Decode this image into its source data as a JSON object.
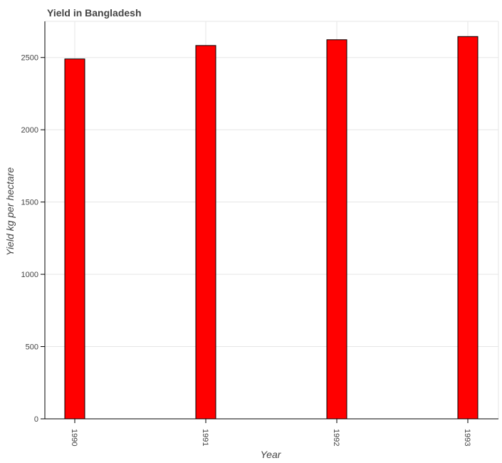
{
  "chart_data": {
    "type": "bar",
    "title": "Yield in Bangladesh",
    "xlabel": "Year",
    "ylabel": "Yield kg per hectare",
    "categories": [
      "1990",
      "1991",
      "1992",
      "1993"
    ],
    "values": [
      2490,
      2583,
      2623,
      2645
    ],
    "ylim": [
      0,
      2750
    ],
    "yticks": [
      0,
      500,
      1000,
      1500,
      2000,
      2500
    ],
    "grid": true,
    "legend": "none",
    "colors": {
      "bar_fill": "#ff0000",
      "bar_stroke": "#000000",
      "grid": "#e5e5e5",
      "axis": "#000000",
      "text": "#444444"
    }
  }
}
